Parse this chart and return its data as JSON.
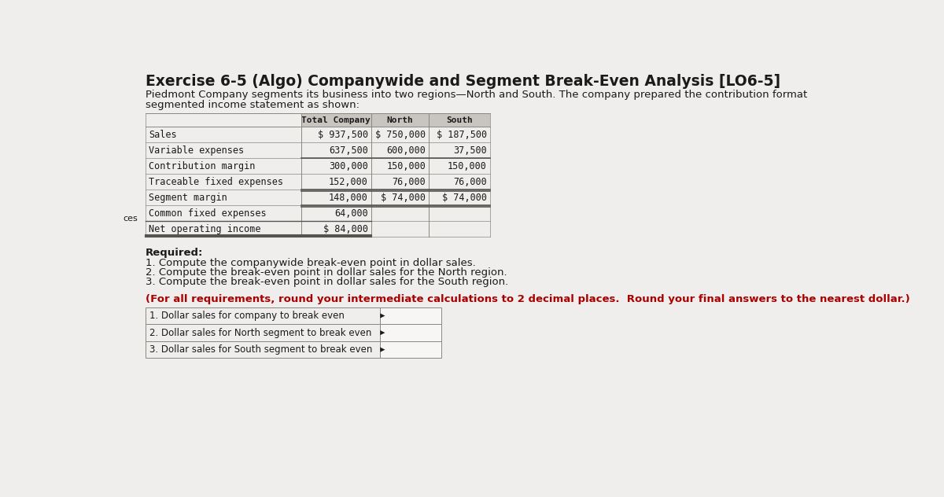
{
  "title": "Exercise 6-5 (Algo) Companywide and Segment Break-Even Analysis [LO6-5]",
  "description_line1": "Piedmont Company segments its business into two regions—North and South. The company prepared the contribution format",
  "description_line2": "segmented income statement as shown:",
  "page_bg": "#f0eeec",
  "table_header": [
    "Total Company",
    "North",
    "South"
  ],
  "row_labels": [
    "Sales",
    "Variable expenses",
    "Contribution margin",
    "Traceable fixed expenses",
    "Segment margin",
    "Common fixed expenses",
    "Net operating income"
  ],
  "total_col": [
    "$ 937,500",
    "637,500",
    "300,000",
    "152,000",
    "148,000",
    "64,000",
    "$ 84,000"
  ],
  "north_col": [
    "$ 750,000",
    "600,000",
    "150,000",
    "76,000",
    "$ 74,000",
    "",
    ""
  ],
  "south_col": [
    "$ 187,500",
    "37,500",
    "150,000",
    "76,000",
    "$ 74,000",
    "",
    ""
  ],
  "required_title": "Required:",
  "required_items": [
    "1. Compute the companywide break-even point in dollar sales.",
    "2. Compute the break-even point in dollar sales for the North region.",
    "3. Compute the break-even point in dollar sales for the South region."
  ],
  "note_text": "(For all requirements, round your intermediate calculations to 2 decimal places.  Round your final answers to the nearest dollar.)",
  "answer_labels": [
    "1. Dollar sales for company to break even",
    "2. Dollar sales for North segment to break even",
    "3. Dollar sales for South segment to break even"
  ],
  "header_bg": "#c8c4c0",
  "text_color_dark": "#1a1a1a",
  "text_color_red": "#aa0000",
  "left_margin_text": "ces",
  "line_color": "#888880",
  "bold_line_color": "#555550",
  "answer_box_bg": "#f8f6f4",
  "answer_label_bg": "#f0eeec"
}
